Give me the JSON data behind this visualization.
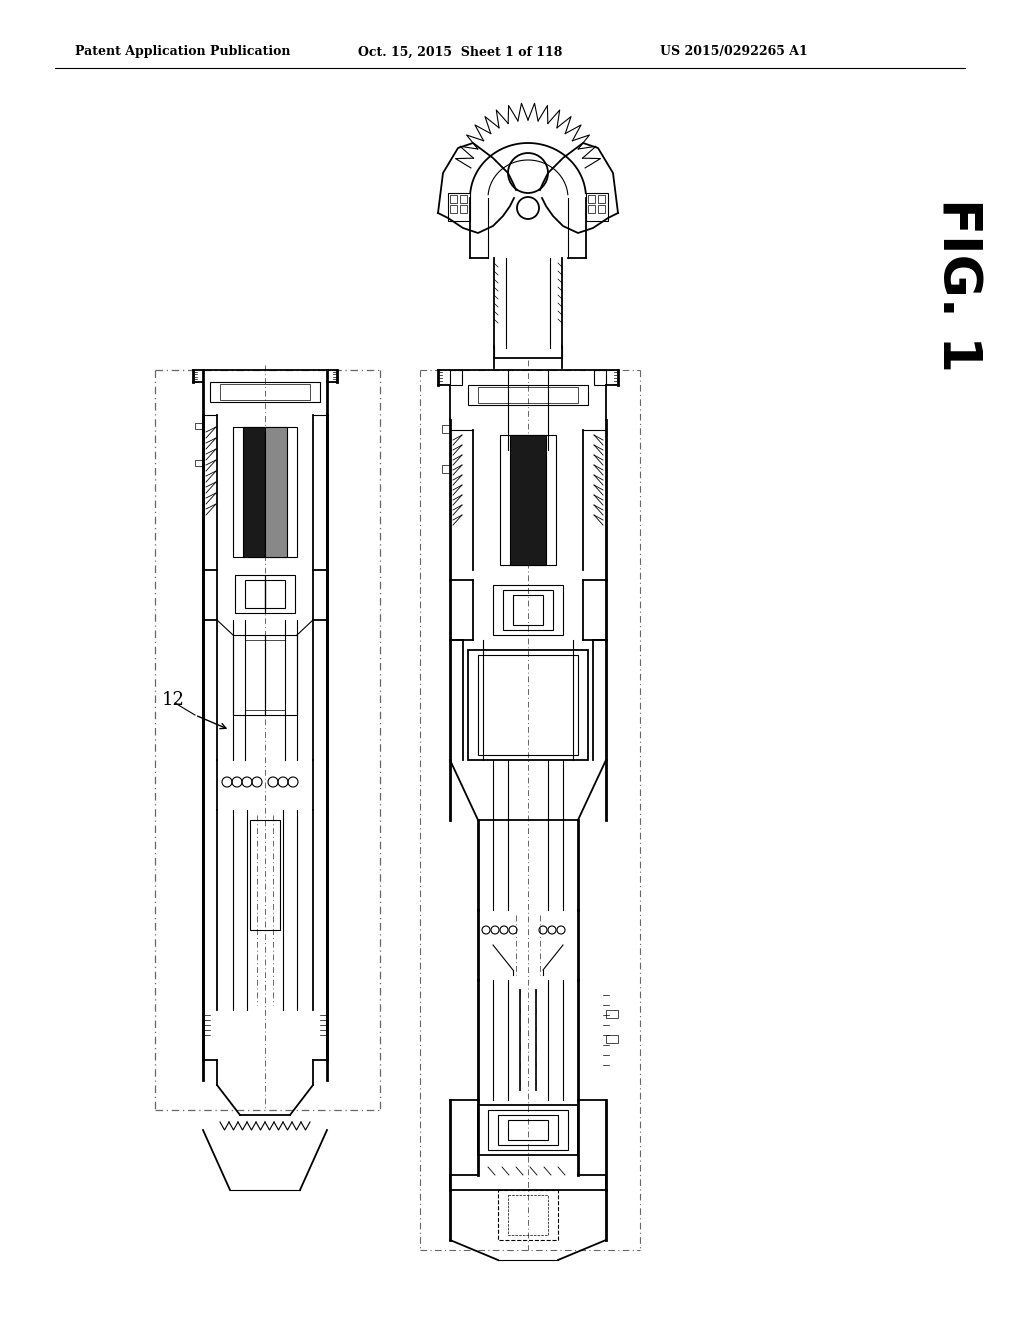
{
  "background_color": "#ffffff",
  "header_text": "Patent Application Publication",
  "header_date": "Oct. 15, 2015  Sheet 1 of 118",
  "header_patent": "US 2015/0292265 A1",
  "fig_label": "FIG. 1",
  "label_12": "12",
  "lc": "#000000",
  "gray": "#888888",
  "dark": "#333333"
}
